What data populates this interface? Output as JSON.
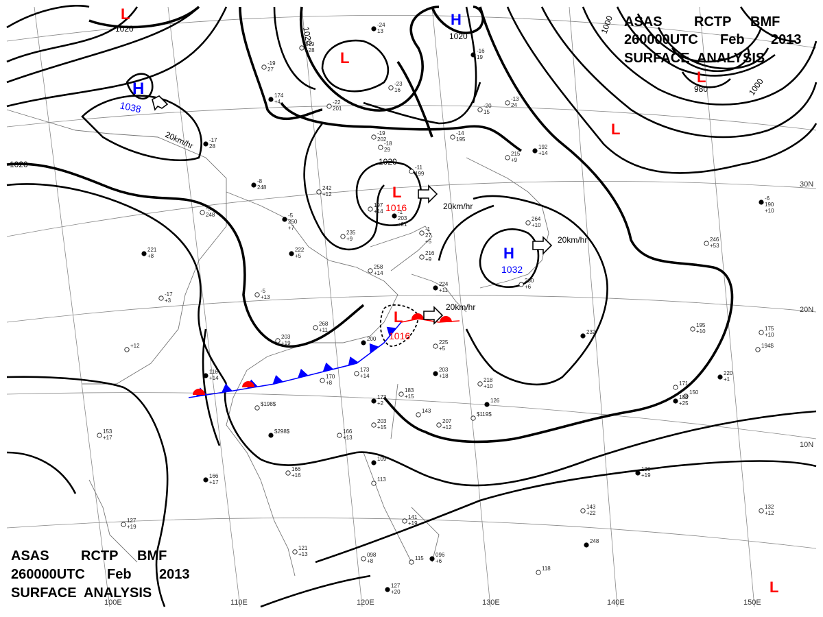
{
  "header_top": {
    "line1": [
      "ASAS",
      "RCTP",
      "BMF"
    ],
    "line2": [
      "260000UTC",
      "Feb",
      "2013"
    ],
    "line3": "SURFACE  ANALYSIS"
  },
  "header_bottom": {
    "line1": [
      "ASAS",
      "RCTP",
      "BMF"
    ],
    "line2": [
      "260000UTC",
      "Feb",
      "2013"
    ],
    "line3": "SURFACE  ANALYSIS"
  },
  "grid_labels": {
    "lon": [
      "110E",
      "120E",
      "130E",
      "140E",
      "150E"
    ],
    "lon_partial": "100E",
    "lat": [
      "30N",
      "20N",
      "10N"
    ]
  },
  "pressure_centers": [
    {
      "type": "L",
      "value": ""
    },
    {
      "type": "H",
      "value": "1038"
    },
    {
      "type": "L",
      "value": ""
    },
    {
      "type": "H",
      "value": "1020"
    },
    {
      "type": "L",
      "value": ""
    },
    {
      "type": "L",
      "value": "980"
    },
    {
      "type": "L",
      "value": "1016"
    },
    {
      "type": "H",
      "value": "1032"
    },
    {
      "type": "L",
      "value": "1016"
    },
    {
      "type": "L",
      "value": ""
    }
  ],
  "isobar_labels": [
    "1020",
    "1020",
    "1020",
    "1020",
    "1000",
    "1000",
    "980",
    "1020"
  ],
  "speed_labels": [
    "20km/hr",
    "20km/hr",
    "20km/hr",
    "20km/hr"
  ],
  "colors": {
    "low": "#ff0000",
    "high": "#0000ff",
    "isobar": "#000000"
  },
  "station_numbers": [
    "-24 13",
    "219 +28",
    "-19 27",
    "174 +4",
    "-23 16",
    "-22 201",
    "-16 19",
    "-20 15",
    "-13 24",
    "-17 28",
    "-19 202",
    "-18 29",
    "-8 248",
    "242 +12",
    "-5 248",
    "-5 250 +7",
    "-14 195",
    "215 +9",
    "192 +14",
    "-11 199",
    "197 +14",
    "-1 203 +21",
    "-1 27 +5",
    "235 +9",
    "222 +5",
    "258 +14",
    "216 +9",
    "221 +8",
    "-17 +3",
    "-5 +13",
    "224 +11",
    "260 +6",
    "264 +10",
    "232",
    "268 +11",
    "203 +19",
    "200",
    "170 +8",
    "173 +14",
    "173 +2",
    "183 +15",
    "203 +15",
    "203 +18",
    "218 +10",
    "225 +5",
    "126",
    "207 +12",
    "246 +53",
    "-6 190 +10",
    "195 +10",
    "175 +10",
    "220 +1",
    "171",
    "150",
    "188 +25",
    "194$",
    "$198$",
    "$298$",
    "166 +13",
    "166 +16",
    "166 +17",
    "153 +17",
    "127 +19",
    "109",
    "113",
    "141 +19",
    "126 +19",
    "143 +22",
    "132 +12",
    "096 +6",
    "098 +8",
    "115",
    "127 +20",
    "118",
    "121 +13",
    "116 +14",
    "+12",
    "143",
    "248",
    "$119$",
    "$229$"
  ]
}
